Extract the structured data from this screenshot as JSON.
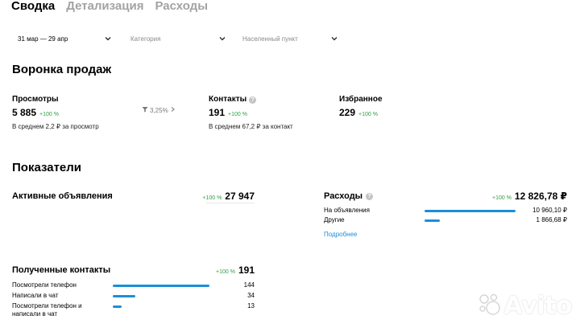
{
  "tabs": [
    {
      "label": "Сводка",
      "active": true
    },
    {
      "label": "Детализация",
      "active": false
    },
    {
      "label": "Расходы",
      "active": false
    }
  ],
  "filters": {
    "period": "31 мар — 29 апр",
    "category_placeholder": "Категория",
    "location_placeholder": "Населенный пункт"
  },
  "funnel": {
    "title": "Воронка продаж",
    "views": {
      "label": "Просмотры",
      "value": "5 885",
      "change": "+100 %",
      "sub": "В среднем 2,2 ₽ за просмотр"
    },
    "conversion": "3,25%",
    "contacts": {
      "label": "Контакты",
      "value": "191",
      "change": "+100 %",
      "sub": "В среднем 67,2 ₽ за контакт"
    },
    "favorites": {
      "label": "Избранное",
      "value": "229",
      "change": "+100 %"
    }
  },
  "indicators": {
    "title": "Показатели",
    "active_ads": {
      "label": "Активные объявления",
      "change": "+100 %",
      "value": "27 947"
    },
    "expenses": {
      "label": "Расходы",
      "change": "+100 %",
      "value": "12 826,78 ₽",
      "rows": [
        {
          "label": "На объявления",
          "value": "10 960,10 ₽",
          "share": 0.855
        },
        {
          "label": "Другие",
          "value": "1 866,68 ₽",
          "share": 0.145
        }
      ],
      "more_link": "Подробнее"
    },
    "contacts": {
      "label": "Полученные контакты",
      "change": "+100 %",
      "value": "191",
      "rows": [
        {
          "label": "Посмотрели телефон",
          "value": "144",
          "share": 0.754
        },
        {
          "label": "Написали в чат",
          "value": "34",
          "share": 0.178
        },
        {
          "label": "Посмотрели телефон и написали в чат",
          "value": "13",
          "share": 0.068
        }
      ]
    }
  },
  "watermark": {
    "text": "Avito"
  },
  "colors": {
    "accent": "#1a8fd8",
    "positive": "#2ea043",
    "muted": "#a3a3a3"
  }
}
